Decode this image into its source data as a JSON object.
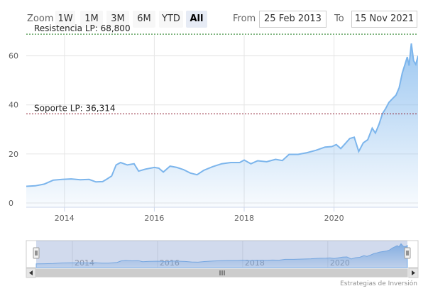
{
  "toolbar": {
    "zoom_label": "Zoom",
    "buttons": [
      {
        "label": "1W",
        "active": false
      },
      {
        "label": "1M",
        "active": false
      },
      {
        "label": "3M",
        "active": false
      },
      {
        "label": "6M",
        "active": false
      },
      {
        "label": "YTD",
        "active": false
      },
      {
        "label": "All",
        "active": true
      }
    ],
    "from_label": "From",
    "from_value": "25 Feb 2013",
    "to_label": "To",
    "to_value": "15 Nov 2021"
  },
  "chart_data": {
    "type": "area",
    "title": "",
    "xlabel": "",
    "ylabel": "",
    "xlim": [
      2013.15,
      2021.87
    ],
    "ylim": [
      0,
      70
    ],
    "x_ticks": [
      2014,
      2016,
      2018,
      2020
    ],
    "y_ticks": [
      0,
      20,
      40,
      60
    ],
    "grid": true,
    "colors": {
      "line": "#7cb5ec",
      "fill_top": "#9ec7f0",
      "fill_bottom": "#ffffff",
      "resistance": "#1a7a1a",
      "support": "#8b1a2e"
    },
    "plot_lines": [
      {
        "label": "Resistencia LP: 68,800",
        "value": 68.8
      },
      {
        "label": "Soporte LP: 36,314",
        "value": 36.314
      }
    ],
    "series": [
      {
        "values": [
          [
            2013.15,
            6.8
          ],
          [
            2013.35,
            7.0
          ],
          [
            2013.55,
            7.7
          ],
          [
            2013.75,
            9.3
          ],
          [
            2013.95,
            9.6
          ],
          [
            2014.15,
            9.8
          ],
          [
            2014.35,
            9.5
          ],
          [
            2014.55,
            9.6
          ],
          [
            2014.7,
            8.6
          ],
          [
            2014.85,
            8.7
          ],
          [
            2014.95,
            9.8
          ],
          [
            2015.05,
            11.0
          ],
          [
            2015.15,
            15.5
          ],
          [
            2015.25,
            16.5
          ],
          [
            2015.4,
            15.5
          ],
          [
            2015.55,
            16.0
          ],
          [
            2015.65,
            13.0
          ],
          [
            2015.8,
            13.8
          ],
          [
            2016.0,
            14.5
          ],
          [
            2016.1,
            14.2
          ],
          [
            2016.2,
            12.6
          ],
          [
            2016.35,
            15.0
          ],
          [
            2016.5,
            14.5
          ],
          [
            2016.65,
            13.6
          ],
          [
            2016.8,
            12.2
          ],
          [
            2016.95,
            11.5
          ],
          [
            2017.1,
            13.3
          ],
          [
            2017.3,
            14.8
          ],
          [
            2017.5,
            16.0
          ],
          [
            2017.7,
            16.5
          ],
          [
            2017.9,
            16.5
          ],
          [
            2018.0,
            17.5
          ],
          [
            2018.15,
            16.0
          ],
          [
            2018.3,
            17.2
          ],
          [
            2018.5,
            16.8
          ],
          [
            2018.7,
            17.8
          ],
          [
            2018.85,
            17.3
          ],
          [
            2019.0,
            19.8
          ],
          [
            2019.2,
            19.8
          ],
          [
            2019.4,
            20.5
          ],
          [
            2019.6,
            21.5
          ],
          [
            2019.8,
            22.8
          ],
          [
            2019.95,
            23.0
          ],
          [
            2020.05,
            23.8
          ],
          [
            2020.15,
            22.2
          ],
          [
            2020.25,
            24.2
          ],
          [
            2020.35,
            26.3
          ],
          [
            2020.45,
            26.8
          ],
          [
            2020.55,
            21.0
          ],
          [
            2020.65,
            24.5
          ],
          [
            2020.75,
            25.8
          ],
          [
            2020.85,
            30.5
          ],
          [
            2020.92,
            28.5
          ],
          [
            2021.0,
            32.0
          ],
          [
            2021.08,
            36.5
          ],
          [
            2021.15,
            38.5
          ],
          [
            2021.22,
            41.0
          ],
          [
            2021.3,
            42.5
          ],
          [
            2021.38,
            44.0
          ],
          [
            2021.45,
            47.0
          ],
          [
            2021.52,
            53.0
          ],
          [
            2021.58,
            56.5
          ],
          [
            2021.63,
            59.5
          ],
          [
            2021.67,
            56.0
          ],
          [
            2021.72,
            65.0
          ],
          [
            2021.77,
            58.0
          ],
          [
            2021.82,
            56.5
          ],
          [
            2021.87,
            60.0
          ]
        ]
      }
    ]
  },
  "navigator": {
    "x_ticks": [
      2014,
      2016,
      2018,
      2020
    ]
  },
  "credits": "Estrategias de Inversión"
}
